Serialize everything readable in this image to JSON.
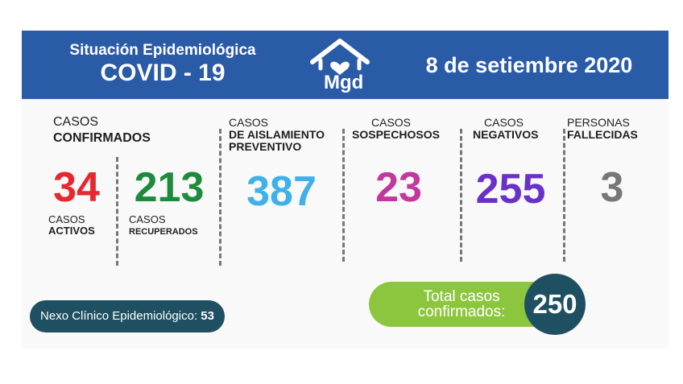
{
  "header": {
    "title_line1": "Situación Epidemiológica",
    "title_line2": "COVID - 19",
    "logo_text": "Mgd",
    "date": "8 de setiembre 2020"
  },
  "confirmados": {
    "label1": "CASOS",
    "label2": "CONFIRMADOS"
  },
  "activos": {
    "value": "34",
    "label1": "CASOS",
    "label2": "ACTIVOS",
    "color": "#e8282f"
  },
  "recuperados": {
    "value": "213",
    "label1": "CASOS",
    "label2": "RECUPERADOS",
    "color": "#1e8a3c"
  },
  "aislamiento": {
    "label1": "CASOS",
    "label2": "DE AISLAMIENTO",
    "label3": "PREVENTIVO",
    "value": "387",
    "color": "#3fb0ea"
  },
  "sospechosos": {
    "label1": "CASOS",
    "label2": "SOSPECHOSOS",
    "value": "23",
    "color": "#c1389f"
  },
  "negativos": {
    "label1": "CASOS",
    "label2": "NEGATIVOS",
    "value": "255",
    "color": "#6a31c9"
  },
  "fallecidas": {
    "label1": "PERSONAS",
    "label2": "FALLECIDAS",
    "value": "3",
    "color": "#777777"
  },
  "nexo": {
    "label": "Nexo Clínico Epidemiológico:",
    "value": "53"
  },
  "total": {
    "label1": "Total casos",
    "label2": "confirmados:",
    "value": "250"
  }
}
